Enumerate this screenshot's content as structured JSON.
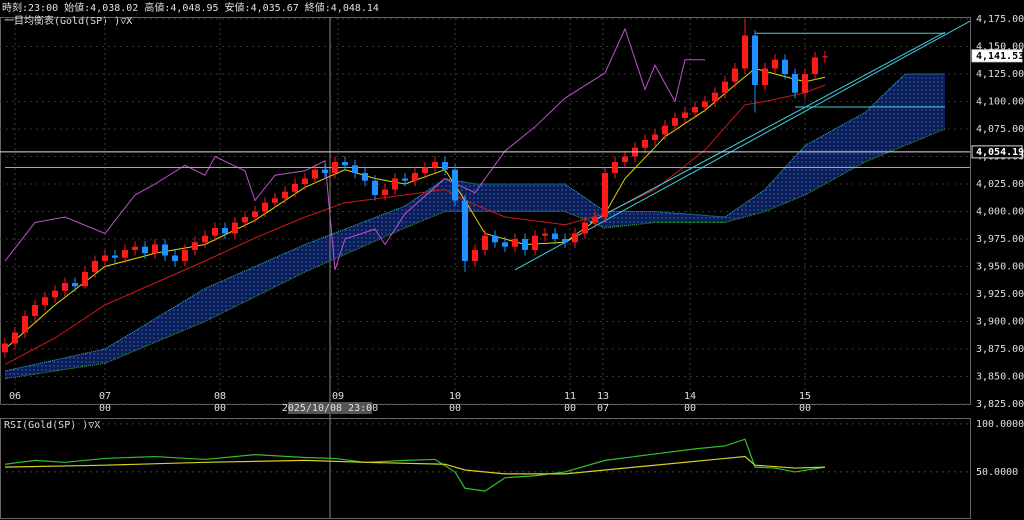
{
  "chart_data": [
    {
      "type": "candlestick",
      "header": "時刻:23:00 始値:4,038.02 高値:4,048.95 安値:4,035.67 終値:4,048.14",
      "indicator_label": "一目均衡表(Gold(SP) )▽X",
      "up_color": "#ff1a1a",
      "down_color": "#1e90ff",
      "open": [
        3872,
        3880,
        3890,
        3905,
        3915,
        3922,
        3928,
        3935,
        3932,
        3945,
        3955,
        3960,
        3958,
        3965,
        3968,
        3962,
        3970,
        3960,
        3955,
        3965,
        3972,
        3978,
        3985,
        3980,
        3990,
        3995,
        4000,
        4008,
        4012,
        4018,
        4025,
        4030,
        4038,
        4035,
        4045,
        4042,
        4035,
        4028,
        4015,
        4020,
        4030,
        4028,
        4035,
        4040,
        4045,
        4038,
        4010,
        3955,
        3965,
        3978,
        3972,
        3968,
        3975,
        3965,
        3978,
        3980,
        3975,
        3972,
        3980,
        3990,
        3995,
        4035,
        4045,
        4050,
        4058,
        4065,
        4070,
        4078,
        4085,
        4090,
        4095,
        4100,
        4108,
        4118,
        4130,
        4160,
        4115,
        4130,
        4138,
        4125,
        4108,
        4125,
        4140
      ],
      "high": [
        3885,
        3895,
        3910,
        3920,
        3927,
        3933,
        3940,
        3940,
        3950,
        3960,
        3965,
        3965,
        3970,
        3973,
        3973,
        3975,
        3975,
        3965,
        3970,
        3977,
        3983,
        3990,
        3990,
        3995,
        4000,
        4005,
        4013,
        4017,
        4023,
        4030,
        4035,
        4043,
        4043,
        4050,
        4050,
        4047,
        4040,
        4033,
        4025,
        4035,
        4035,
        4040,
        4045,
        4050,
        4050,
        4043,
        4015,
        3970,
        3983,
        3983,
        3977,
        3980,
        3980,
        3983,
        3985,
        3985,
        3980,
        3985,
        3995,
        4000,
        4040,
        4050,
        4055,
        4063,
        4070,
        4075,
        4083,
        4090,
        4095,
        4100,
        4105,
        4113,
        4123,
        4135,
        4175,
        4165,
        4135,
        4143,
        4143,
        4130,
        4130,
        4145,
        4146
      ],
      "low": [
        3867,
        3875,
        3885,
        3900,
        3910,
        3917,
        3923,
        3927,
        3930,
        3940,
        3950,
        3953,
        3953,
        3960,
        3957,
        3957,
        3955,
        3950,
        3950,
        3960,
        3967,
        3973,
        3975,
        3975,
        3985,
        3990,
        3995,
        4003,
        4007,
        4013,
        4020,
        4025,
        4030,
        4030,
        4037,
        4030,
        4023,
        4010,
        4010,
        4015,
        4023,
        4023,
        4030,
        4035,
        4033,
        4005,
        3945,
        3950,
        3960,
        3967,
        3963,
        3963,
        3960,
        3960,
        3973,
        3970,
        3967,
        3967,
        3975,
        3985,
        3990,
        4030,
        4040,
        4045,
        4053,
        4060,
        4065,
        4073,
        4080,
        4085,
        4090,
        4095,
        4103,
        4113,
        4125,
        4090,
        4110,
        4125,
        4120,
        4103,
        4103,
        4120,
        4135
      ],
      "close": [
        3880,
        3890,
        3905,
        3915,
        3922,
        3928,
        3935,
        3932,
        3945,
        3955,
        3960,
        3958,
        3965,
        3968,
        3962,
        3970,
        3960,
        3955,
        3965,
        3972,
        3978,
        3985,
        3980,
        3990,
        3995,
        4000,
        4008,
        4012,
        4018,
        4025,
        4030,
        4038,
        4035,
        4045,
        4042,
        4035,
        4028,
        4015,
        4020,
        4030,
        4028,
        4035,
        4040,
        4045,
        4038,
        4010,
        3955,
        3965,
        3978,
        3972,
        3968,
        3975,
        3965,
        3978,
        3980,
        3975,
        3972,
        3980,
        3990,
        3995,
        4035,
        4045,
        4050,
        4058,
        4065,
        4070,
        4078,
        4085,
        4090,
        4095,
        4100,
        4108,
        4118,
        4130,
        4160,
        4115,
        4130,
        4138,
        4125,
        4108,
        4125,
        4140,
        4141
      ],
      "cloud": {
        "x": [
          0,
          10,
          20,
          30,
          40,
          44,
          47,
          56,
          60,
          65,
          72,
          76,
          80,
          86,
          90,
          94
        ],
        "upper": [
          3855,
          3875,
          3930,
          3970,
          4005,
          4030,
          4025,
          4025,
          4000,
          4000,
          3995,
          4020,
          4060,
          4090,
          4125,
          4125
        ],
        "lower": [
          3848,
          3862,
          3900,
          3945,
          3985,
          4000,
          4000,
          4000,
          3985,
          3990,
          3990,
          4000,
          4015,
          4045,
          4060,
          4075
        ],
        "upper_color": "#30b8c8",
        "lower_color": "#38a838",
        "fill_color": "#0c2060"
      },
      "overlays": [
        {
          "color": "#d01818",
          "x": [
            0,
            5,
            10,
            15,
            20,
            25,
            30,
            34,
            40,
            44,
            46,
            50,
            56,
            60,
            65,
            70,
            74,
            76,
            80,
            82
          ],
          "values": [
            3861,
            3885,
            3915,
            3935,
            3955,
            3976,
            3995,
            4008,
            4015,
            4020,
            4010,
            3995,
            3988,
            3998,
            4020,
            4056,
            4097,
            4100,
            4108,
            4115
          ]
        },
        {
          "color": "#e8d800",
          "x": [
            0,
            5,
            10,
            15,
            20,
            25,
            30,
            34,
            37,
            40,
            44,
            46,
            48,
            52,
            56,
            60,
            62,
            66,
            70,
            73,
            75,
            77,
            80,
            82
          ],
          "values": [
            3875,
            3915,
            3950,
            3962,
            3970,
            3992,
            4022,
            4038,
            4030,
            4025,
            4038,
            4010,
            3980,
            3970,
            3972,
            3998,
            4030,
            4068,
            4092,
            4115,
            4130,
            4125,
            4118,
            4122
          ]
        },
        {
          "color": "#c050d0",
          "x": [
            0,
            3,
            6,
            10,
            13,
            15,
            18,
            20,
            21,
            24,
            25,
            27,
            30,
            32,
            33,
            34,
            37,
            38,
            40,
            44,
            47,
            50,
            53,
            56,
            60,
            62,
            64,
            65,
            67,
            68,
            70
          ],
          "values": [
            3955,
            3990,
            3995,
            3980,
            4015,
            4025,
            4042,
            4033,
            4050,
            4037,
            4010,
            4033,
            4037,
            4046,
            3947,
            3975,
            3984,
            3970,
            3998,
            4030,
            4017,
            4055,
            4077,
            4103,
            4126,
            4166,
            4111,
            4133,
            4100,
            4138,
            4138
          ]
        }
      ],
      "drawing_color": "#40d0e0",
      "drawings": [
        {
          "x": [
            51,
            96.5
          ],
          "values": [
            3947,
            4173
          ]
        },
        {
          "x": [
            58.5,
            94
          ],
          "values": [
            3990,
            4163
          ]
        },
        {
          "x": [
            75,
            94
          ],
          "values": [
            4162,
            4162
          ]
        },
        {
          "x": [
            79,
            94
          ],
          "values": [
            4095,
            4095
          ]
        },
        {
          "x": [
            0,
            96.5
          ],
          "values": [
            4040,
            4040
          ]
        }
      ],
      "price_labels": [
        {
          "value": 4141.53,
          "label": "4,141.53",
          "highlight": true
        },
        {
          "value": 4054.19,
          "label": "4,054.19",
          "highlight": false
        }
      ],
      "crosshair": {
        "value": 32.5,
        "label": "2025/10/08 23:00"
      },
      "xlim": [
        -0.5,
        96.5
      ],
      "xticks": [
        {
          "value": 1,
          "label": "06"
        },
        {
          "value": 10,
          "label": "07"
        },
        {
          "value": 21.5,
          "label": "08"
        },
        {
          "value": 33.3,
          "label": "09"
        },
        {
          "value": 45,
          "label": "10"
        },
        {
          "value": 56.5,
          "label": "11"
        },
        {
          "value": 59.8,
          "label": "13"
        },
        {
          "value": 68.5,
          "label": "14"
        },
        {
          "value": 80,
          "label": "15"
        }
      ],
      "xsubticks": [
        {
          "value": 10,
          "label": "00"
        },
        {
          "value": 21.5,
          "label": "00"
        },
        {
          "value": 45,
          "label": "00"
        },
        {
          "value": 56.5,
          "label": "00"
        },
        {
          "value": 59.8,
          "label": "07"
        },
        {
          "value": 68.5,
          "label": "00"
        },
        {
          "value": 80,
          "label": "00"
        }
      ],
      "ylim": [
        3825,
        4175
      ],
      "yticks": [
        {
          "value": 3825,
          "label": "3,825.00"
        },
        {
          "value": 3850,
          "label": "3,850.00"
        },
        {
          "value": 3875,
          "label": "3,875.00"
        },
        {
          "value": 3900,
          "label": "3,900.00"
        },
        {
          "value": 3925,
          "label": "3,925.00"
        },
        {
          "value": 3950,
          "label": "3,950.00"
        },
        {
          "value": 3975,
          "label": "3,975.00"
        },
        {
          "value": 4000,
          "label": "4,000.00"
        },
        {
          "value": 4025,
          "label": "4,025.00"
        },
        {
          "value": 4050,
          "label": "4,050.00"
        },
        {
          "value": 4075,
          "label": "4,075.00"
        },
        {
          "value": 4100,
          "label": "4,100.00"
        },
        {
          "value": 4125,
          "label": "4,125.00"
        },
        {
          "value": 4150,
          "label": "4,150.00"
        },
        {
          "value": 4175,
          "label": "4,175.00"
        }
      ],
      "grid": true
    },
    {
      "type": "line",
      "indicator_label": "RSI(Gold(SP) )▽X",
      "xlim": [
        -0.5,
        96.5
      ],
      "ylim": [
        0,
        104
      ],
      "yticks": [
        {
          "value": 100,
          "label": "100.0000"
        },
        {
          "value": 50,
          "label": "50.0000"
        }
      ],
      "series": [
        {
          "color": "#30c030",
          "x": [
            0,
            3,
            6,
            10,
            15,
            20,
            25,
            30,
            33,
            36,
            40,
            43,
            45,
            46,
            48,
            50,
            53,
            56,
            60,
            63,
            66,
            69,
            72,
            74,
            75,
            77,
            79,
            82
          ],
          "values": [
            58,
            62,
            60,
            64,
            66,
            63,
            68,
            65,
            64,
            60,
            62,
            63,
            50,
            33,
            30,
            44,
            46,
            50,
            62,
            66,
            70,
            74,
            77,
            84,
            55,
            54,
            50,
            55
          ]
        },
        {
          "color": "#d8d020",
          "x": [
            0,
            10,
            20,
            30,
            36,
            44,
            46,
            50,
            56,
            60,
            66,
            72,
            74,
            75,
            79,
            82
          ],
          "values": [
            55,
            57,
            60,
            62,
            60,
            58,
            52,
            48,
            48,
            52,
            58,
            64,
            66,
            57,
            54,
            55
          ]
        }
      ]
    }
  ]
}
